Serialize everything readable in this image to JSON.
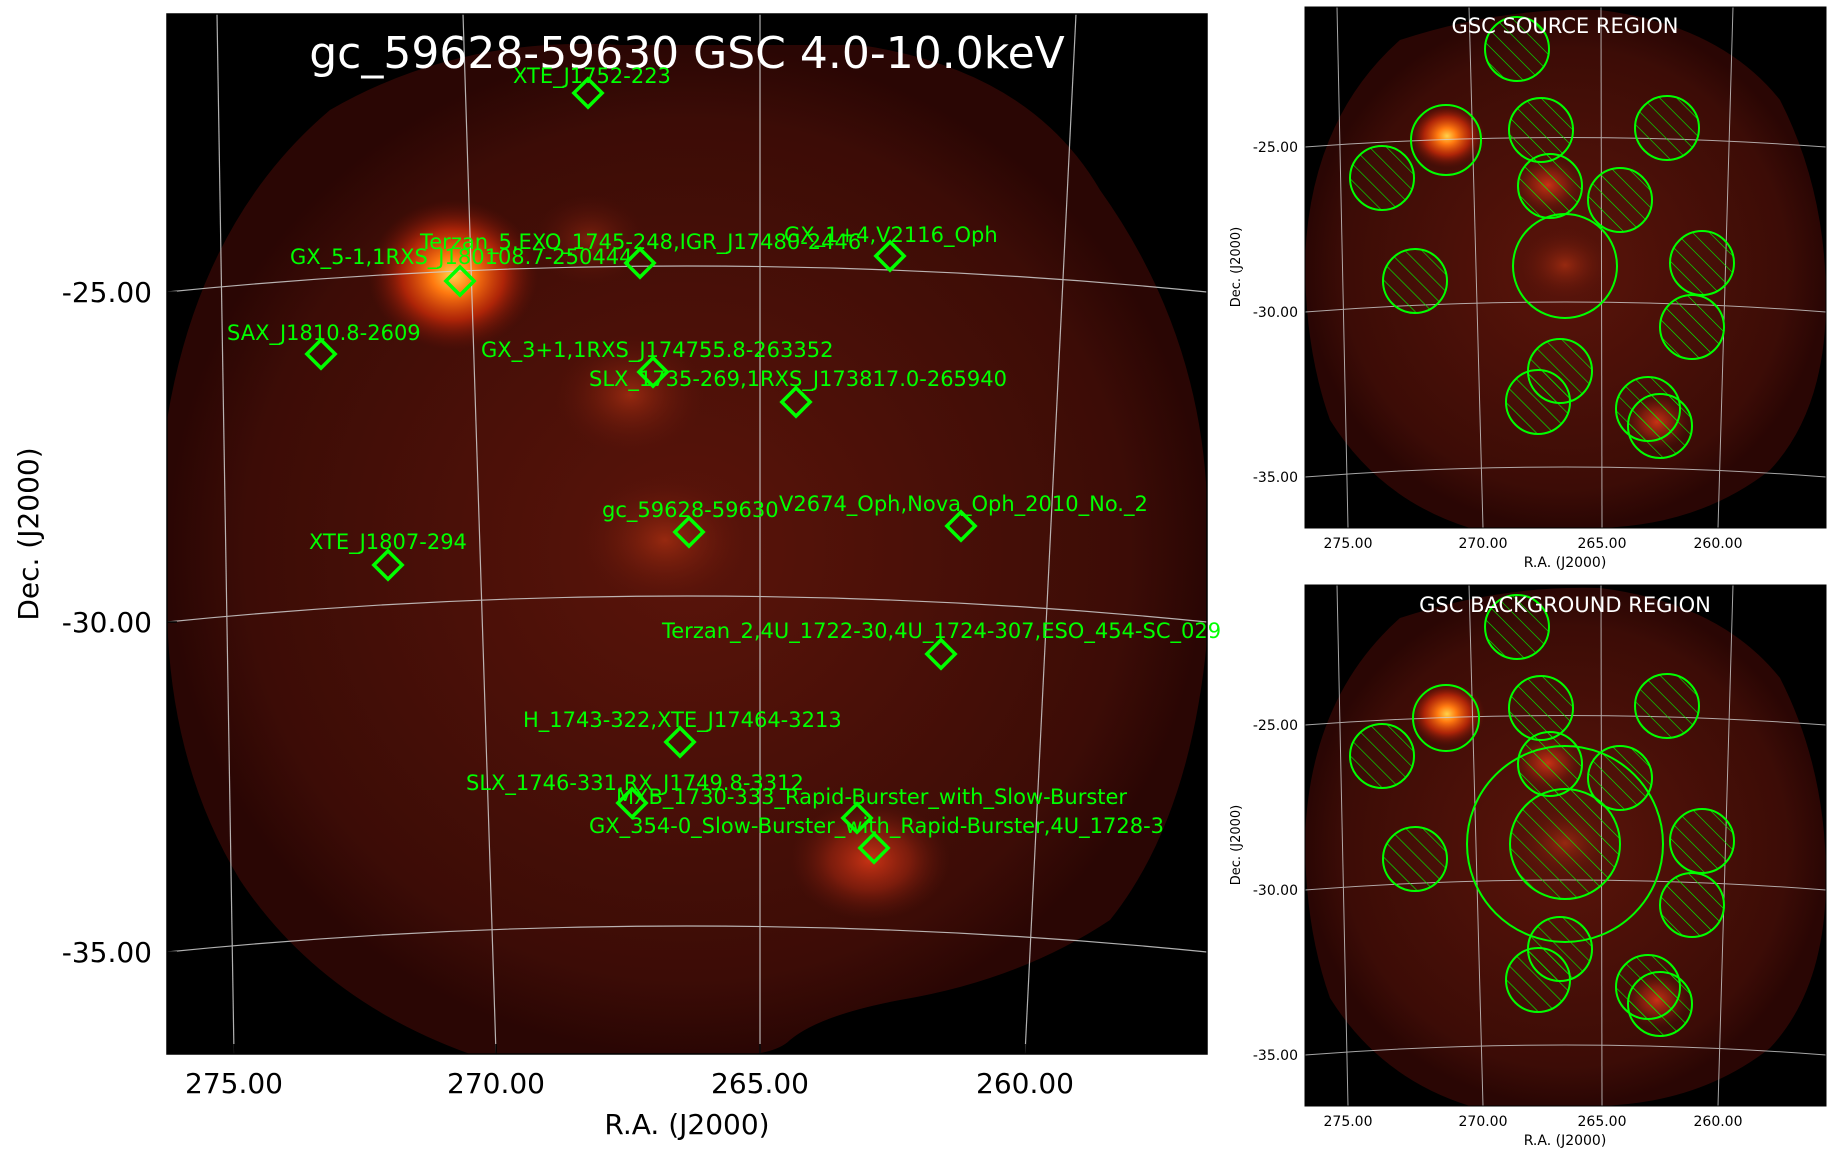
{
  "main": {
    "title": "gc_59628-59630 GSC 4.0-10.0keV",
    "xlabel": "R.A. (J2000)",
    "ylabel": "Dec. (J2000)",
    "xticks": [
      "275.00",
      "270.00",
      "265.00",
      "260.00"
    ],
    "yticks": [
      "-25.00",
      "-30.00",
      "-35.00"
    ],
    "marker_color": "#00ff00",
    "sources": [
      {
        "label": "XTE_J1752-223"
      },
      {
        "label": "Terzan_5,EXO_1745-248,IGR_J17480-2446"
      },
      {
        "label": "GX_1+4,V2116_Oph"
      },
      {
        "label": "GX_5-1,1RXS_J180108.7-250444"
      },
      {
        "label": "SAX_J1810.8-2609"
      },
      {
        "label": "GX_3+1,1RXS_J174755.8-263352"
      },
      {
        "label": "SLX_1735-269,1RXS_J173817.0-265940"
      },
      {
        "label": "gc_59628-59630"
      },
      {
        "label": "V2674_Oph,Nova_Oph_2010_No._2"
      },
      {
        "label": "XTE_J1807-294"
      },
      {
        "label": "Terzan_2,4U_1722-30,4U_1724-307,ESO_454-SC_029"
      },
      {
        "label": "H_1743-322,XTE_J17464-3213"
      },
      {
        "label": "SLX_1746-331,RX_J1749.8-3312"
      },
      {
        "label": "MXB_1730-333_Rapid-Burster_with_Slow-Burster"
      },
      {
        "label": "GX_354-0_Slow-Burster_with_Rapid-Burster,4U_1728-3"
      }
    ]
  },
  "source_panel": {
    "title": "GSC SOURCE REGION",
    "xlabel": "R.A. (J2000)",
    "ylabel": "Dec. (J2000)",
    "xticks": [
      "275.00",
      "270.00",
      "265.00",
      "260.00"
    ],
    "yticks": [
      "-25.00",
      "-30.00",
      "-35.00"
    ]
  },
  "background_panel": {
    "title": "GSC BACKGROUND REGION",
    "xlabel": "R.A. (J2000)",
    "ylabel": "Dec. (J2000)",
    "xticks": [
      "275.00",
      "270.00",
      "265.00",
      "260.00"
    ],
    "yticks": [
      "-25.00",
      "-30.00",
      "-35.00"
    ]
  }
}
